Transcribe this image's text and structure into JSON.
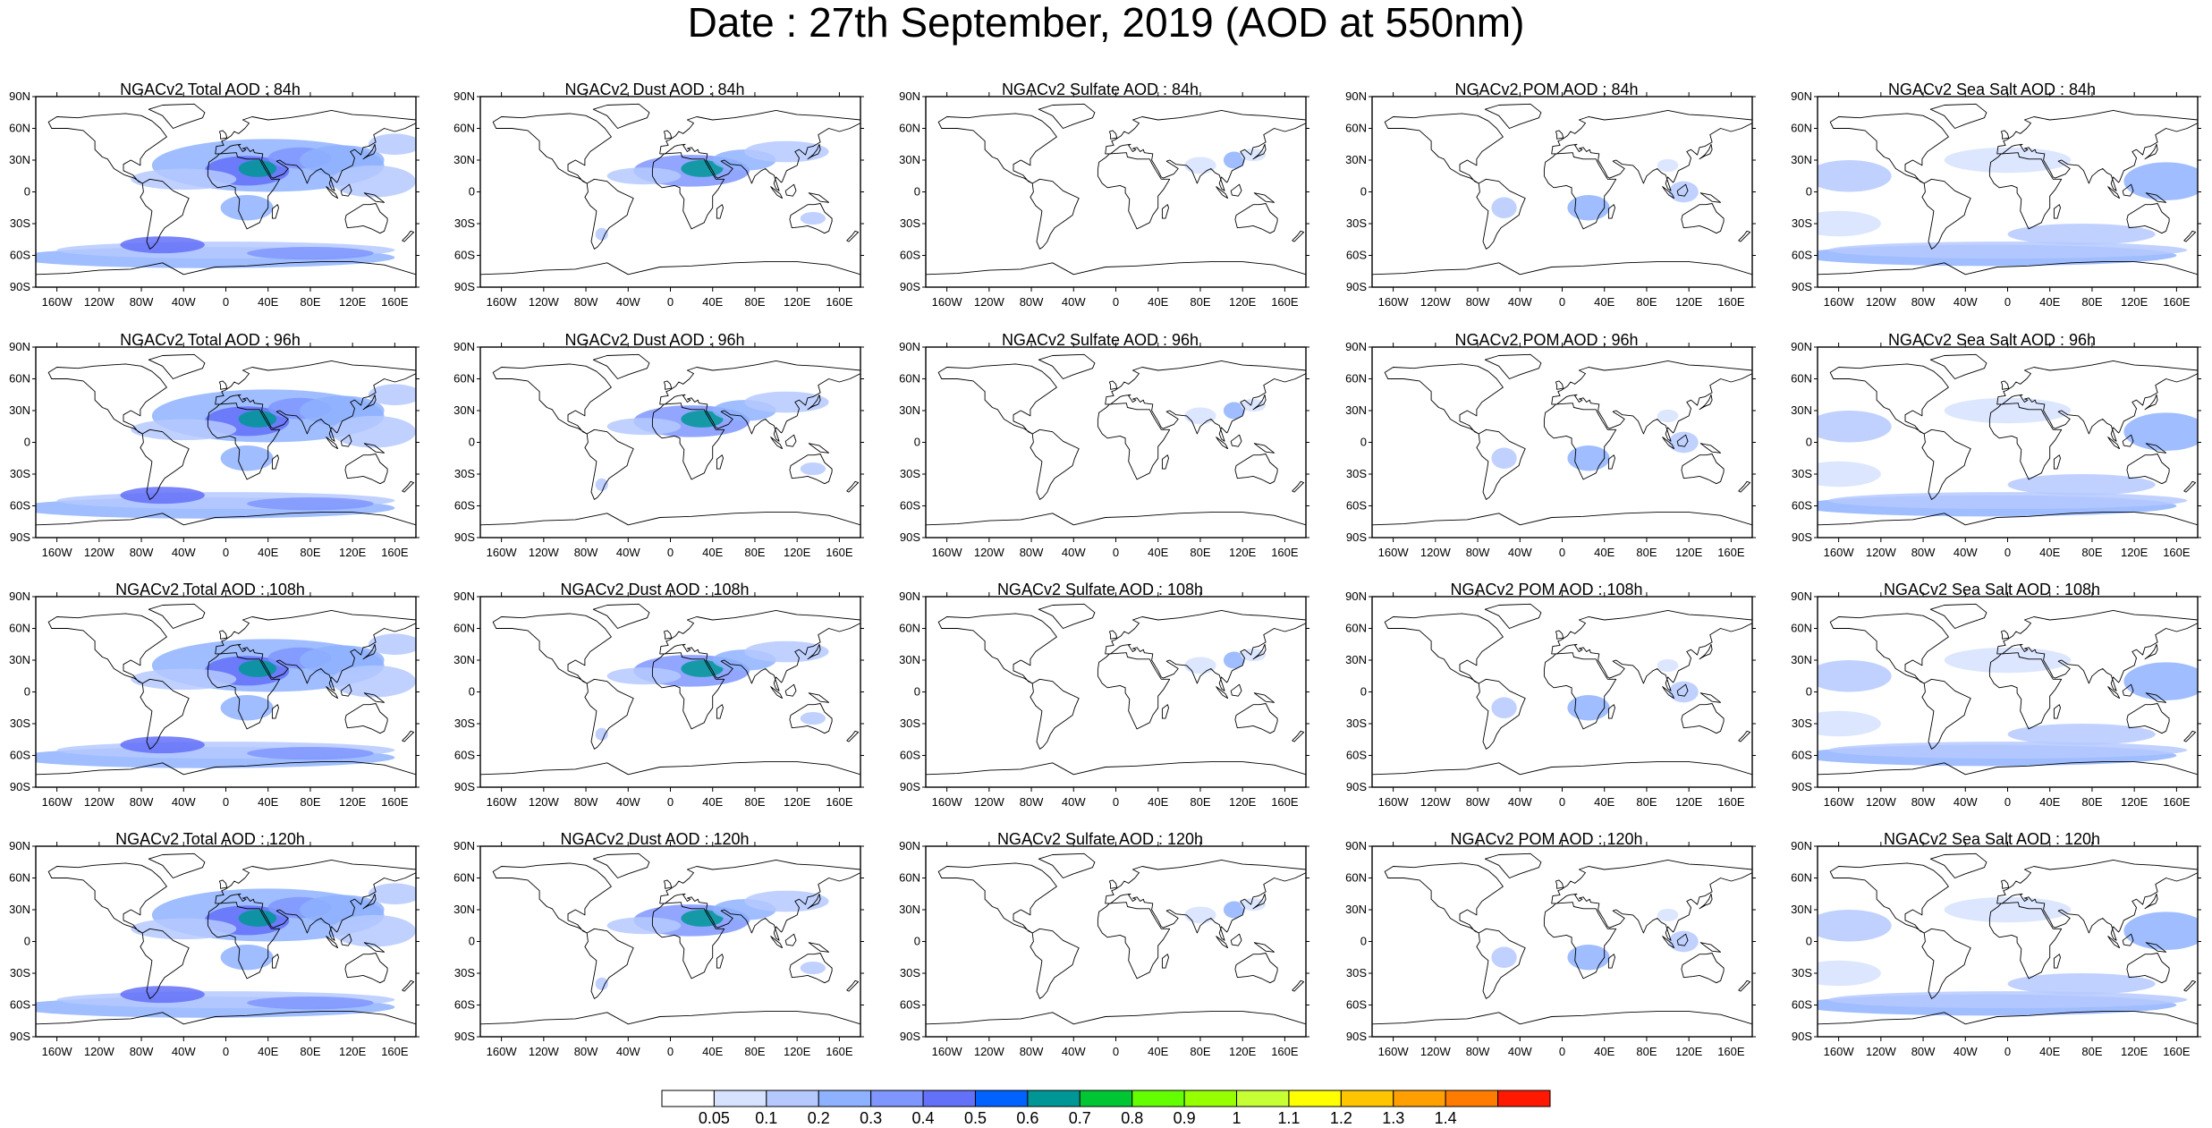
{
  "title": "Date : 27th September, 2019 (AOD at 550nm)",
  "panels": [
    {
      "title": "NGACv2 Total AOD : 84h",
      "species": "total"
    },
    {
      "title": "NGACv2 Dust AOD : 84h",
      "species": "dust"
    },
    {
      "title": "NGACv2 Sulfate AOD : 84h",
      "species": "sulfate"
    },
    {
      "title": "NGACv2 POM AOD : 84h",
      "species": "pom"
    },
    {
      "title": "NGACv2 Sea Salt AOD : 84h",
      "species": "seasalt"
    },
    {
      "title": "NGACv2 Total AOD : 96h",
      "species": "total"
    },
    {
      "title": "NGACv2 Dust AOD : 96h",
      "species": "dust"
    },
    {
      "title": "NGACv2 Sulfate AOD : 96h",
      "species": "sulfate"
    },
    {
      "title": "NGACv2 POM AOD : 96h",
      "species": "pom"
    },
    {
      "title": "NGACv2 Sea Salt AOD : 96h",
      "species": "seasalt"
    },
    {
      "title": "NGACv2 Total AOD : 108h",
      "species": "total"
    },
    {
      "title": "NGACv2 Dust AOD : 108h",
      "species": "dust"
    },
    {
      "title": "NGACv2 Sulfate AOD : 108h",
      "species": "sulfate"
    },
    {
      "title": "NGACv2 POM AOD : 108h",
      "species": "pom"
    },
    {
      "title": "NGACv2 Sea Salt AOD : 108h",
      "species": "seasalt"
    },
    {
      "title": "NGACv2 Total AOD : 120h",
      "species": "total"
    },
    {
      "title": "NGACv2 Dust AOD : 120h",
      "species": "dust"
    },
    {
      "title": "NGACv2 Sulfate AOD : 120h",
      "species": "sulfate"
    },
    {
      "title": "NGACv2 POM AOD : 120h",
      "species": "pom"
    },
    {
      "title": "NGACv2 Sea Salt  AOD : 120h",
      "species": "seasalt"
    }
  ],
  "lat_ticks": [
    "90N",
    "60N",
    "30N",
    "0",
    "30S",
    "60S",
    "90S"
  ],
  "lon_ticks": [
    "160W",
    "120W",
    "80W",
    "40W",
    "0",
    "40E",
    "80E",
    "120E",
    "160E"
  ],
  "colorbar": {
    "labels": [
      "0.05",
      "0.1",
      "0.2",
      "0.3",
      "0.4",
      "0.5",
      "0.6",
      "0.7",
      "0.8",
      "0.9",
      "1",
      "1.1",
      "1.2",
      "1.3",
      "1.4"
    ],
    "colors": [
      "#ffffff",
      "#d6e2ff",
      "#b5c9ff",
      "#8eb2ff",
      "#7f96ff",
      "#6370f8",
      "#0063ff",
      "#009696",
      "#00c633",
      "#63ff00",
      "#96ff00",
      "#c6ff33",
      "#ffff00",
      "#ffc600",
      "#ffa000",
      "#ff7c00",
      "#ff1900"
    ]
  }
}
